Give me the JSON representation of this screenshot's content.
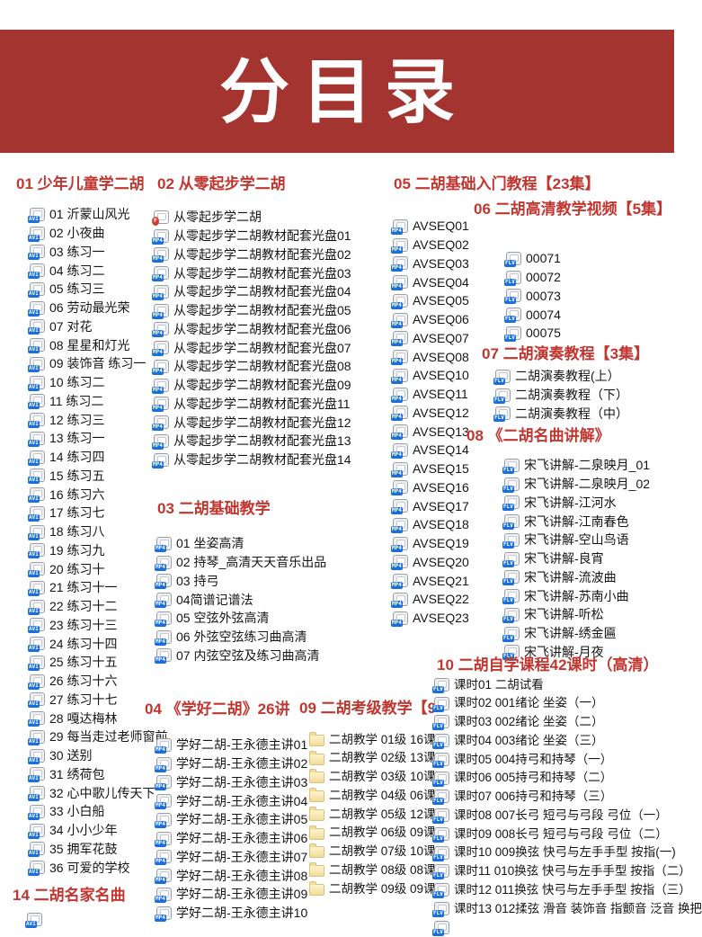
{
  "banner": {
    "title": "分目录"
  },
  "colors": {
    "banner_bg": "#a4342f",
    "header_red": "#c23630",
    "badge_blue": "#1b6fdd",
    "badge_red": "#d23c30",
    "text": "#151515"
  },
  "icon_labels": {
    "avi": "AVI",
    "mp4": "MP4",
    "flv": "FLV",
    "pdf": "P"
  },
  "sections": {
    "s01": {
      "title": "01 少年儿童学二胡",
      "icon": "avi",
      "items": [
        "01 沂蒙山风光",
        "02 小夜曲",
        "03 练习一",
        "04 练习二",
        "05 练习三",
        "06 劳动最光荣",
        "07 对花",
        "08 星星和灯光",
        "09 装饰音 练习一",
        "10 练习二",
        "11 练习二",
        "12 练习三",
        "13 练习一",
        "14 练习四",
        "15 练习五",
        "16 练习六",
        "17 练习七",
        "18 练习八",
        "19 练习九",
        "20 练习十",
        "21 练习十一",
        "22 练习十二",
        "23 练习十三",
        "24 练习十四",
        "25 练习十五",
        "26 练习十六",
        "27 练习十七",
        "28 嘎达梅林",
        "29 每当走过老师窗前",
        "30 送别",
        "31 绣荷包",
        "32 心中歌儿传天下",
        "33 小白船",
        "34 小小少年",
        "35 拥军花鼓",
        "36 可爱的学校"
      ]
    },
    "s02": {
      "title": "02 从零起步学二胡",
      "icon": "mp4",
      "items": [
        {
          "icon": "pdf",
          "label": "从零起步学二胡"
        },
        "从零起步学二胡教材配套光盘01",
        "从零起步学二胡教材配套光盘02",
        "从零起步学二胡教材配套光盘03",
        "从零起步学二胡教材配套光盘04",
        "从零起步学二胡教材配套光盘05",
        "从零起步学二胡教材配套光盘06",
        "从零起步学二胡教材配套光盘07",
        "从零起步学二胡教材配套光盘08",
        "从零起步学二胡教材配套光盘09",
        "从零起步学二胡教材配套光盘11",
        "从零起步学二胡教材配套光盘12",
        "从零起步学二胡教材配套光盘13",
        "从零起步学二胡教材配套光盘14"
      ]
    },
    "s03": {
      "title": "03 二胡基础教学",
      "icon": "mp4",
      "items": [
        "01 坐姿高清",
        "02 持琴_高清天天音乐出品",
        "03 持弓",
        "04简谱记谱法",
        "05 空弦外弦高清",
        "06 外弦空弦练习曲高清",
        "07 内弦空弦及练习曲高清"
      ]
    },
    "s04": {
      "title": "04 《学好二胡》26讲",
      "icon": "mp4",
      "items": [
        "学好二胡-王永德主讲01",
        "学好二胡-王永德主讲02",
        "学好二胡-王永德主讲03",
        "学好二胡-王永德主讲04",
        "学好二胡-王永德主讲05",
        "学好二胡-王永德主讲06",
        "学好二胡-王永德主讲07",
        "学好二胡-王永德主讲08",
        "学好二胡-王永德主讲09",
        "学好二胡-王永德主讲10"
      ]
    },
    "s05": {
      "title": "05 二胡基础入门教程【23集】",
      "icon": "mp4",
      "items": [
        "AVSEQ01",
        "AVSEQ02",
        "AVSEQ03",
        "AVSEQ04",
        "AVSEQ05",
        "AVSEQ06",
        "AVSEQ07",
        "AVSEQ08",
        "AVSEQ10",
        "AVSEQ11",
        "AVSEQ12",
        "AVSEQ13",
        "AVSEQ14",
        "AVSEQ15",
        "AVSEQ16",
        "AVSEQ17",
        "AVSEQ18",
        "AVSEQ19",
        "AVSEQ20",
        "AVSEQ21",
        "AVSEQ22",
        "AVSEQ23"
      ]
    },
    "s06": {
      "title": "06 二胡高清教学视频【5集】",
      "icon": "flv",
      "items": [
        "00071",
        "00072",
        "00073",
        "00074",
        "00075"
      ]
    },
    "s07": {
      "title": "07 二胡演奏教程【3集】",
      "icon": "flv",
      "items": [
        "二胡演奏教程(上）",
        "二胡演奏教程（下）",
        "二胡演奏教程（中）"
      ]
    },
    "s08": {
      "title": "08 《二胡名曲讲解》",
      "icon": "flv",
      "items": [
        "宋飞讲解-二泉映月_01",
        "宋飞讲解-二泉映月_02",
        "宋飞讲解-江河水",
        "宋飞讲解-江南春色",
        "宋飞讲解-空山鸟语",
        "宋飞讲解-良宵",
        "宋飞讲解-流波曲",
        "宋飞讲解-苏南小曲",
        "宋飞讲解-听松",
        "宋飞讲解-绣金匾",
        "宋飞讲解-月夜"
      ]
    },
    "s09": {
      "title": "09 二胡考级教学【9",
      "icon": "folder",
      "items": [
        "二胡教学 01级 16课",
        "二胡教学 02级 13课",
        "二胡教学 03级 10课",
        "二胡教学 04级 06课",
        "二胡教学 05级 12课",
        "二胡教学 06级 09课",
        "二胡教学 07级 10课",
        "二胡教学 08级 08课",
        "二胡教学 09级 09课"
      ]
    },
    "s10": {
      "title": "10 二胡自学课程42课时（高清）",
      "icon": "flv",
      "items": [
        "课时01 二胡试看",
        "课时02 001绪论 坐姿（一）",
        "课时03 002绪论 坐姿（二）",
        "课时04 003绪论 坐姿（三）",
        "课时05 004持弓和持琴（一）",
        "课时06 005持弓和持琴（二）",
        "课时07 006持弓和持琴（三）",
        "课时08 007长弓 短弓与弓段 弓位（一）",
        "课时09 008长弓 短弓与弓段 弓位（二）",
        "课时10 009换弦 快弓与左手手型 按指(一)",
        "课时11 010换弦 快弓与左手手型 按指（二）",
        "课时12 011换弦 快弓与左手手型 按指（三）",
        "课时13 012揉弦 滑音 装饰音 指颤音 泛音 换把",
        {
          "label": ""
        }
      ]
    },
    "s14": {
      "title": "14 二胡名家名曲",
      "icon": "avi",
      "items": [
        {
          "label": ""
        }
      ]
    }
  }
}
